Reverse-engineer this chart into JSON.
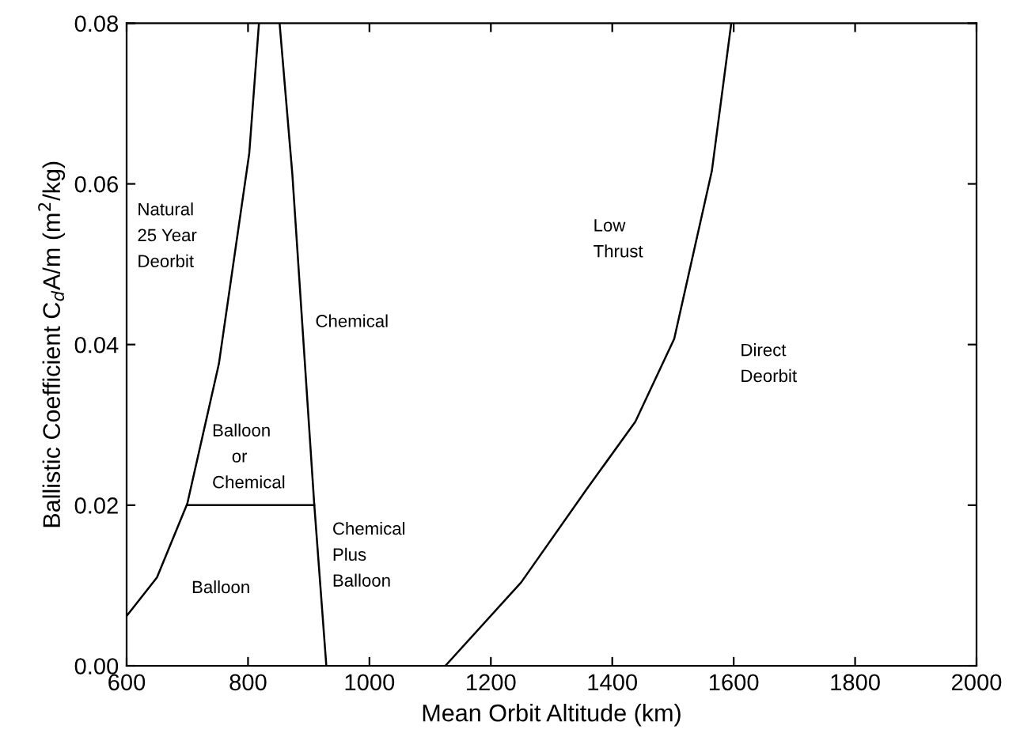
{
  "chart_data": {
    "type": "line",
    "xlabel": "Mean Orbit Altitude (km)",
    "ylabel": "Ballistic Coefficient C$_{d}$A/m (m$^{2}$/kg)",
    "xlim": [
      600,
      2000
    ],
    "ylim": [
      0,
      0.08
    ],
    "xticks": [
      600,
      800,
      1000,
      1200,
      1400,
      1600,
      1800,
      2000
    ],
    "yticks": [
      {
        "value": 0,
        "label": "0.00"
      },
      {
        "value": 0.02,
        "label": "0.02"
      },
      {
        "value": 0.04,
        "label": "0.04"
      },
      {
        "value": 0.06,
        "label": "0.06"
      },
      {
        "value": 0.08,
        "label": "0.08"
      }
    ],
    "grid": false,
    "marker": "none",
    "line_style": "solid",
    "series": [
      {
        "color": "#000000",
        "x": [
          600,
          650,
          700,
          752,
          802,
          818
        ],
        "values": [
          0.0062,
          0.011,
          0.0202,
          0.0376,
          0.0638,
          0.08
        ]
      },
      {
        "color": "#000000",
        "x": [
          852,
          873,
          909,
          929
        ],
        "values": [
          0.08,
          0.0612,
          0.0202,
          0
        ]
      },
      {
        "color": "#000000",
        "x": [
          700,
          909
        ],
        "values": [
          0.02,
          0.02
        ]
      },
      {
        "color": "#000000",
        "x": [
          1125,
          1250,
          1357,
          1438,
          1502,
          1564,
          1596
        ],
        "values": [
          0,
          0.0104,
          0.0219,
          0.0304,
          0.0407,
          0.0616,
          0.08
        ]
      }
    ],
    "annotations": [
      "Natural\n25 Year\nDeorbit",
      "Chemical",
      "Balloon\n    or\nChemical",
      "Chemical\nPlus\nBalloon",
      "Balloon",
      "Low\nThrust",
      "Direct\nDeorbit"
    ]
  }
}
